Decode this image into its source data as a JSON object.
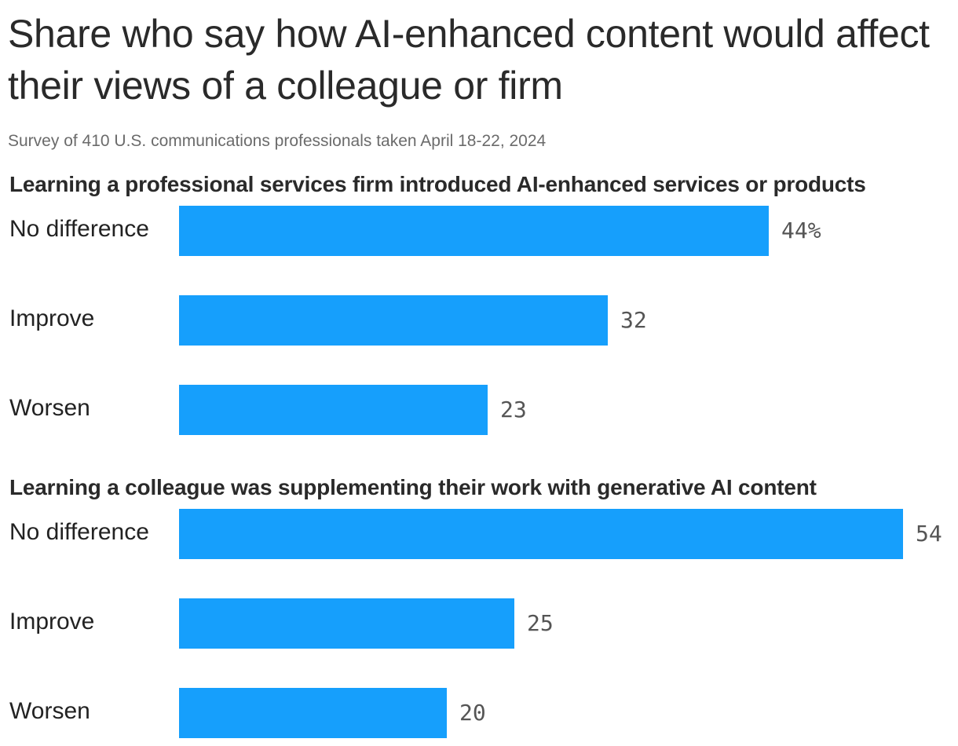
{
  "chart_data": {
    "type": "bar",
    "orientation": "horizontal",
    "title": "Share who say how AI-enhanced content would affect their views of a colleague or firm",
    "subtitle": "Survey of 410 U.S. communications professionals taken April 18-22, 2024",
    "bar_color": "#169ffc",
    "value_unit": "%",
    "panels": [
      {
        "title": "Learning a professional services firm introduced AI-enhanced services or products",
        "categories": [
          "No difference",
          "Improve",
          "Worsen"
        ],
        "values": [
          44,
          32,
          23
        ],
        "value_labels": [
          "44%",
          "32",
          "23"
        ]
      },
      {
        "title": "Learning a colleague was supplementing their work with generative AI content",
        "categories": [
          "No difference",
          "Improve",
          "Worsen"
        ],
        "values": [
          54,
          25,
          20
        ],
        "value_labels": [
          "54",
          "25",
          "20"
        ]
      }
    ],
    "xlim": [
      0,
      54
    ],
    "grid": false,
    "legend": "none"
  }
}
